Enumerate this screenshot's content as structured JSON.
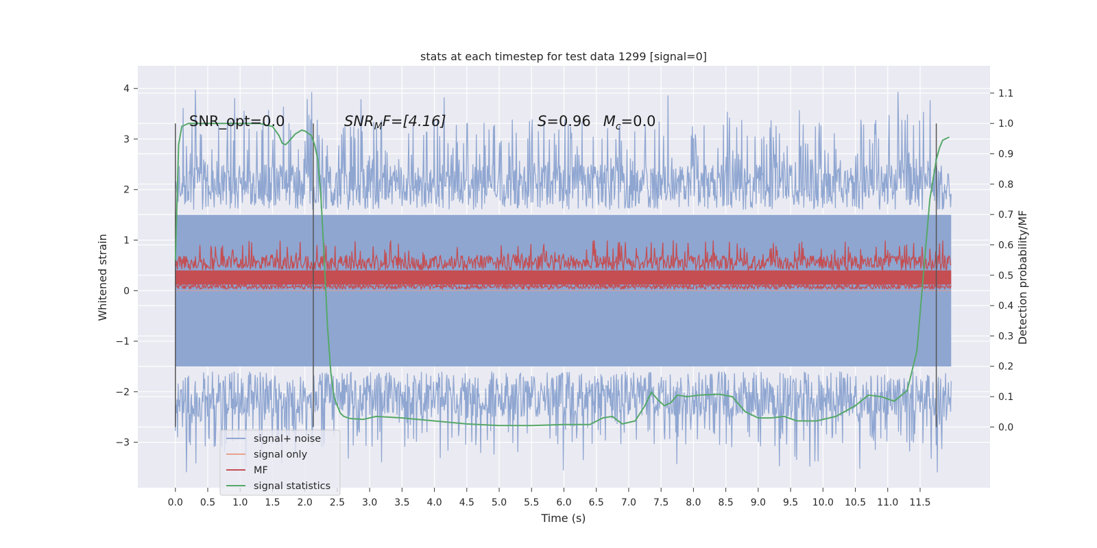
{
  "chart_data": {
    "type": "line",
    "title": "stats at each timestep for test data 1299 [signal=0]",
    "xlabel": "Time (s)",
    "ylabel_left": "Whitened strain",
    "ylabel_right": "Detection probability/MF",
    "xlim": [
      -0.58,
      12.58
    ],
    "ylim_left": [
      -3.9,
      4.45
    ],
    "ylim_right": [
      -0.2,
      1.19
    ],
    "x_ticks": [
      "0.0",
      "0.5",
      "1.0",
      "1.5",
      "2.0",
      "2.5",
      "3.0",
      "3.5",
      "4.0",
      "4.5",
      "5.0",
      "5.5",
      "6.0",
      "6.5",
      "7.0",
      "7.5",
      "8.0",
      "8.5",
      "9.0",
      "9.5",
      "10.0",
      "10.5",
      "11.0",
      "11.5"
    ],
    "y_ticks_left": [
      "−3",
      "−2",
      "−1",
      "0",
      "1",
      "2",
      "3",
      "4"
    ],
    "y_ticks_right": [
      "0.0",
      "0.1",
      "0.2",
      "0.3",
      "0.4",
      "0.5",
      "0.6",
      "0.7",
      "0.8",
      "0.9",
      "1.0",
      "1.1"
    ],
    "grid": true,
    "legend_position": "lower-left",
    "annotations": [
      {
        "text": "SNR_opt=0.0",
        "x": 0.2
      },
      {
        "text": "SNR_MF=[4.16]",
        "x": 2.6
      },
      {
        "text": "S=0.96   M_c=0.0",
        "x": 5.6
      }
    ],
    "annotation_display": {
      "snr_opt": "SNR_opt=0.0",
      "snr_mf_main": "SNR",
      "snr_mf_sub": "M",
      "snr_mf_rest": "F=[4.16]",
      "s_main": "S",
      "s_rest": "=0.96",
      "mc_main": "M",
      "mc_sub": "c",
      "mc_rest": "=0.0"
    },
    "vertical_markers": [
      0.0,
      2.13,
      11.75
    ],
    "series": [
      {
        "name": "signal+ noise",
        "axis": "left",
        "color": "#8fa6d1",
        "description_range": {
          "x": [
            0.0,
            11.98
          ],
          "upper_envelope": [
            2.2,
            4.1
          ],
          "lower_envelope": [
            -3.6,
            -2.1
          ]
        }
      },
      {
        "name": "signal only",
        "axis": "left",
        "color": "#e9a18a",
        "values": "flat at 0"
      },
      {
        "name": "MF",
        "axis": "left",
        "color": "#c44e52",
        "description_range": {
          "x": [
            0.0,
            11.98
          ],
          "low": 0.03,
          "high": 1.0
        }
      },
      {
        "name": "signal statistics",
        "axis": "right",
        "color": "#55a868",
        "x": [
          0.0,
          0.05,
          0.1,
          0.15,
          0.2,
          0.3,
          0.5,
          0.8,
          1.0,
          1.3,
          1.5,
          1.6,
          1.65,
          1.7,
          1.75,
          1.85,
          1.95,
          2.0,
          2.1,
          2.15,
          2.2,
          2.25,
          2.3,
          2.35,
          2.4,
          2.45,
          2.5,
          2.55,
          2.6,
          2.7,
          2.9,
          3.1,
          3.5,
          4.0,
          4.5,
          5.0,
          5.5,
          6.0,
          6.4,
          6.6,
          6.75,
          6.9,
          7.1,
          7.25,
          7.35,
          7.45,
          7.55,
          7.65,
          7.75,
          7.9,
          8.1,
          8.4,
          8.6,
          8.8,
          9.0,
          9.2,
          9.4,
          9.6,
          9.9,
          10.2,
          10.5,
          10.7,
          10.9,
          11.1,
          11.3,
          11.45,
          11.55,
          11.65,
          11.75,
          11.8,
          11.85,
          11.95
        ],
        "values": [
          0.55,
          0.93,
          0.99,
          0.995,
          1.0,
          1.0,
          1.0,
          1.0,
          1.0,
          1.0,
          0.99,
          0.96,
          0.935,
          0.93,
          0.94,
          0.965,
          0.978,
          0.975,
          0.96,
          0.93,
          0.88,
          0.75,
          0.55,
          0.33,
          0.18,
          0.1,
          0.07,
          0.045,
          0.035,
          0.028,
          0.025,
          0.035,
          0.03,
          0.02,
          0.01,
          0.005,
          0.005,
          0.008,
          0.008,
          0.03,
          0.035,
          0.01,
          0.02,
          0.07,
          0.115,
          0.09,
          0.07,
          0.08,
          0.105,
          0.1,
          0.105,
          0.108,
          0.1,
          0.05,
          0.03,
          0.03,
          0.035,
          0.02,
          0.02,
          0.035,
          0.07,
          0.105,
          0.1,
          0.085,
          0.12,
          0.25,
          0.5,
          0.75,
          0.88,
          0.92,
          0.945,
          0.955
        ]
      }
    ],
    "legend": [
      "signal+ noise",
      "signal only",
      "MF",
      "signal statistics"
    ]
  }
}
